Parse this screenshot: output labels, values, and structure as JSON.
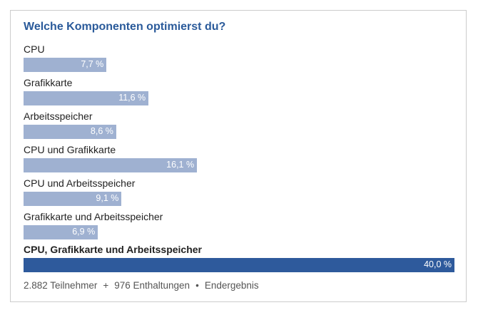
{
  "chart_data": {
    "type": "bar",
    "orientation": "horizontal",
    "title": "Welche Komponenten optimierst du?",
    "categories": [
      "CPU",
      "Grafikkarte",
      "Arbeitsspeicher",
      "CPU und Grafikkarte",
      "CPU und Arbeitsspeicher",
      "Grafikkarte und Arbeitsspeicher",
      "CPU, Grafikkarte und Arbeitsspeicher"
    ],
    "values": [
      7.7,
      11.6,
      8.6,
      16.1,
      9.1,
      6.9,
      40.0
    ],
    "value_labels": [
      "7,7 %",
      "11,6 %",
      "8,6 %",
      "16,1 %",
      "9,1 %",
      "6,9 %",
      "40,0 %"
    ],
    "unit": "%",
    "xlim": [
      0,
      40.0
    ],
    "winner_index": 6,
    "xlabel": "",
    "ylabel": ""
  },
  "footer": {
    "participants": "2.882 Teilnehmer",
    "sep1": "+",
    "abstentions": "976 Enthaltungen",
    "sep2": "•",
    "status": "Endergebnis"
  },
  "colors": {
    "title": "#2a5a9a",
    "bar": "#9fb1d1",
    "bar_winner": "#2e5a9c",
    "border": "#cccccc"
  }
}
